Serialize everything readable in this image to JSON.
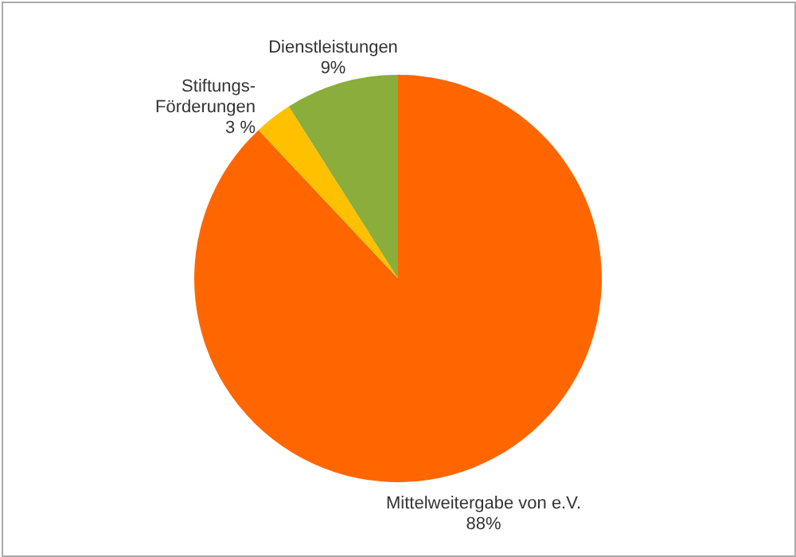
{
  "chart_data": {
    "type": "pie",
    "categories": [
      "Mittelweitergabe von e.V.",
      "Stiftungs-Förderungen",
      "Dienstleistungen"
    ],
    "values": [
      88,
      3,
      9
    ],
    "colors": [
      "#ff6600",
      "#ffc000",
      "#8aad3b"
    ],
    "value_labels": [
      "88%",
      "3 %",
      "9%"
    ]
  }
}
